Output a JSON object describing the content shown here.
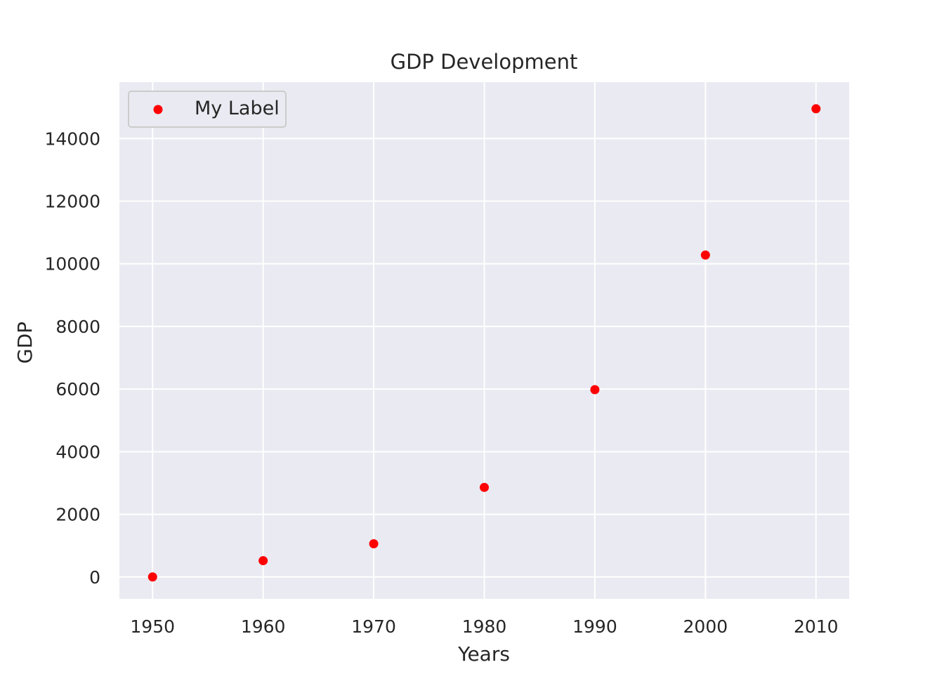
{
  "chart_data": {
    "type": "scatter",
    "title": "GDP Development",
    "xlabel": "Years",
    "ylabel": "GDP",
    "xlim": [
      1947,
      2013
    ],
    "ylim": [
      -700,
      15800
    ],
    "xticks": [
      1950,
      1960,
      1970,
      1980,
      1990,
      2000,
      2010
    ],
    "yticks": [
      0,
      2000,
      4000,
      6000,
      8000,
      10000,
      12000,
      14000
    ],
    "grid": true,
    "legend_position": "top-left",
    "background_color": "#eaeaf2",
    "series": [
      {
        "name": "My Label",
        "color": "#ff0000",
        "x": [
          1950,
          1960,
          1970,
          1980,
          1990,
          2000,
          2010
        ],
        "y": [
          0,
          520,
          1060,
          2860,
          5980,
          10280,
          14950
        ]
      }
    ]
  }
}
